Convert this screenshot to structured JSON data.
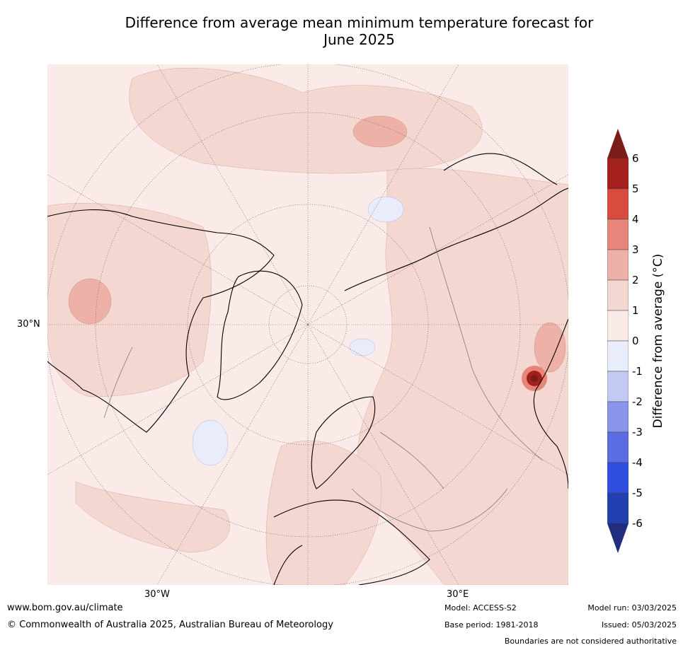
{
  "title_line1": "Difference from average mean minimum temperature forecast for",
  "title_line2": "June 2025",
  "map": {
    "lat_label": "30°N",
    "lon_labels": [
      "30°W",
      "30°E"
    ]
  },
  "colorbar": {
    "label": "Difference from average (°C)",
    "ticks": [
      "6",
      "5",
      "4",
      "3",
      "2",
      "1",
      "0",
      "-1",
      "-2",
      "-3",
      "-4",
      "-5",
      "-6"
    ],
    "colors": [
      "#a3201f",
      "#d84b3e",
      "#e8857a",
      "#eeb1a8",
      "#f5d7d2",
      "#fbebe8",
      "#e9ecfb",
      "#c2c9f2",
      "#8895ea",
      "#5b6de3",
      "#2f4fe0",
      "#243fb0"
    ],
    "over_color": "#7a1c18",
    "under_color": "#202e7d"
  },
  "footer": {
    "website": "www.bom.gov.au/climate",
    "copyright": "© Commonwealth of Australia 2025, Australian Bureau of Meteorology",
    "model": "Model: ACCESS-S2",
    "base_period": "Base period: 1981-2018",
    "model_run": "Model run: 03/03/2025",
    "issued": "Issued: 05/03/2025",
    "disclaimer": "Boundaries are not considered authoritative"
  }
}
